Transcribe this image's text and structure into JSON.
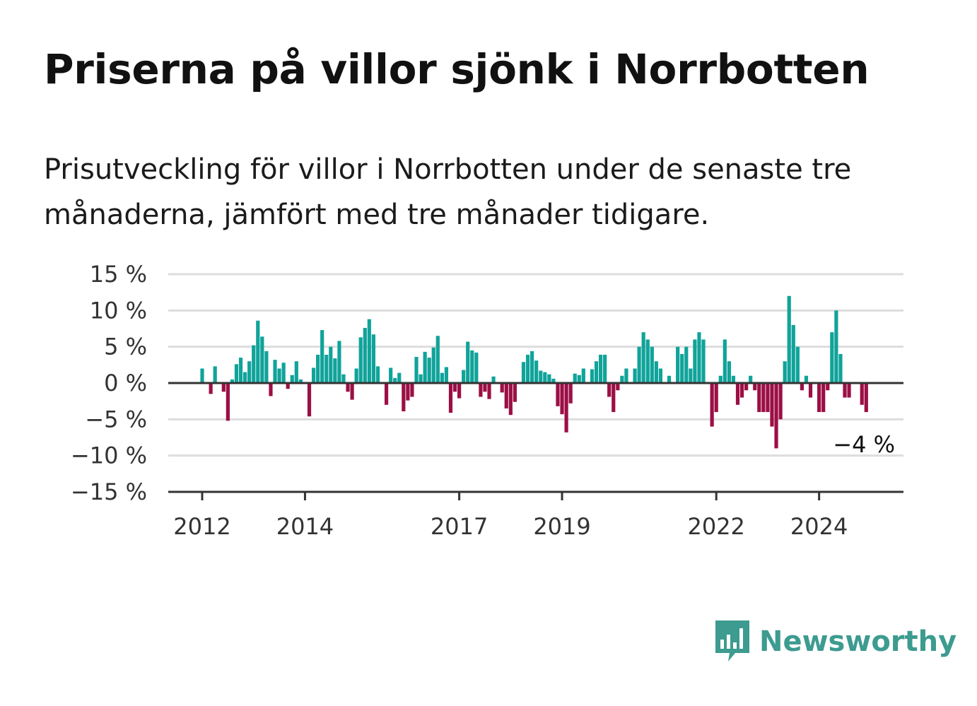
{
  "header": {
    "title": "Priserna på villor sjönk i Norrbotten",
    "subtitle": "Prisutveckling för villor i Norrbotten under de senaste tre månaderna, jämfört med tre månader tidigare."
  },
  "colors": {
    "positive": "#10a39a",
    "negative": "#9b0f45",
    "grid": "#dddddd",
    "axis": "#333333"
  },
  "chart_data": {
    "type": "bar",
    "ylim": [
      -15,
      15
    ],
    "yticks": [
      15,
      10,
      5,
      0,
      -5,
      -10,
      -15
    ],
    "ytick_labels": [
      "15 %",
      "10 %",
      "5 %",
      "0 %",
      "−5 %",
      "−10 %",
      "−15 %"
    ],
    "xticks": [
      "2012",
      "2014",
      "2017",
      "2019",
      "2022",
      "2024"
    ],
    "start": "2012-01",
    "end_label": "−4 %",
    "grid": true,
    "values": [
      2.0,
      0.0,
      -1.5,
      2.3,
      0.0,
      -1.2,
      -5.2,
      0.5,
      2.6,
      3.5,
      1.5,
      3.0,
      5.2,
      8.6,
      6.4,
      4.4,
      -1.8,
      3.2,
      2.0,
      2.8,
      -0.8,
      1.1,
      3.0,
      0.5,
      0.0,
      -4.6,
      2.1,
      3.9,
      7.3,
      3.9,
      5.0,
      3.4,
      5.8,
      1.2,
      -1.2,
      -2.3,
      2.0,
      6.3,
      7.6,
      8.8,
      6.7,
      2.3,
      0.0,
      -3.0,
      2.1,
      0.7,
      1.4,
      -3.9,
      -2.4,
      -1.9,
      3.6,
      1.2,
      4.3,
      3.5,
      4.9,
      6.5,
      1.4,
      2.2,
      -4.1,
      -1.2,
      -2.1,
      1.8,
      5.7,
      4.5,
      4.2,
      -1.9,
      -1.2,
      -2.2,
      0.9,
      0.0,
      -1.3,
      -3.5,
      -4.4,
      -2.6,
      0.0,
      2.9,
      3.9,
      4.4,
      3.1,
      1.7,
      1.5,
      1.2,
      0.6,
      -3.2,
      -4.3,
      -6.8,
      -2.8,
      1.3,
      1.1,
      2.0,
      0.0,
      1.9,
      3.0,
      3.9,
      3.9,
      -1.9,
      -4.0,
      -1.0,
      1.0,
      2.0,
      0.0,
      2.0,
      5.0,
      7.0,
      6.0,
      5.0,
      3.0,
      2.0,
      0.0,
      1.0,
      0.0,
      5.0,
      4.0,
      5.0,
      2.0,
      6.0,
      7.0,
      6.0,
      0.0,
      -6.0,
      -4.0,
      1.0,
      6.0,
      3.0,
      1.0,
      -3.0,
      -2.0,
      -1.0,
      1.0,
      -1.0,
      -4.0,
      -4.0,
      -4.0,
      -6.0,
      -9.0,
      -5.0,
      3.0,
      12.0,
      8.0,
      5.0,
      -1.0,
      1.0,
      -2.0,
      0.0,
      -4.0,
      -4.0,
      -1.0,
      7.0,
      10.0,
      4.0,
      -2.0,
      -2.0,
      0.0,
      0.0,
      -3.0,
      -4.0
    ]
  },
  "brand": {
    "icon": "newsworthy-logo-icon",
    "name": "Newsworthy"
  }
}
